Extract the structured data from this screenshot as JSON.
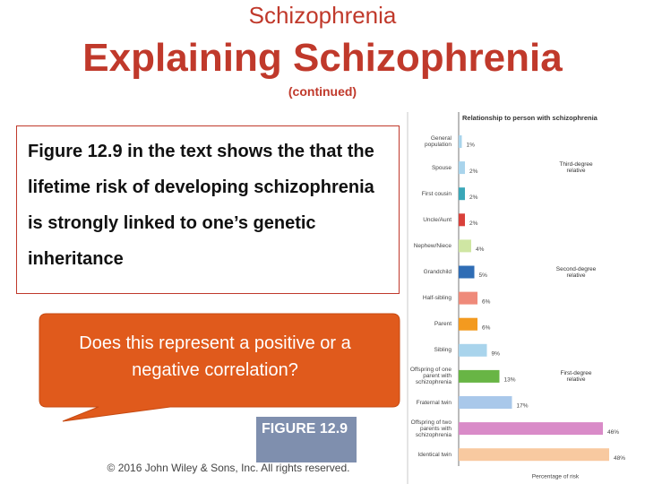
{
  "slide": {
    "header": "Schizophrenia",
    "title": "Explaining Schizophrenia",
    "subtitle": "(continued)",
    "body": "Figure 12.9 in the text shows the that the lifetime risk of developing schizophrenia is strongly linked to one’s genetic inheritance",
    "callout": "Does this represent a positive or a negative correlation?",
    "figure_label": "FIGURE 12.9",
    "copyright": "© 2016 John Wiley & Sons, Inc. All rights reserved."
  },
  "chart_data": {
    "type": "hbar",
    "title": "Relationship to person with schizophrenia",
    "x_label": "Percentage of risk",
    "categories": [
      "General population",
      "Spouse",
      "First cousin",
      "Uncle/Aunt",
      "Nephew/Niece",
      "Grandchild",
      "Half-sibling",
      "Parent",
      "Sibling",
      "Offspring of one parent with schizophrenia",
      "Fraternal twin",
      "Offspring of two parents with schizophrenia",
      "Identical twin"
    ],
    "values": [
      1,
      2,
      2,
      2,
      4,
      5,
      6,
      6,
      9,
      13,
      17,
      46,
      48
    ],
    "value_labels": [
      "1%",
      "2%",
      "2%",
      "2%",
      "4%",
      "5%",
      "6%",
      "6%",
      "9%",
      "13%",
      "17%",
      "46%",
      "48%"
    ],
    "colors": [
      "#a9d4ec",
      "#a9d4ec",
      "#3aa7b8",
      "#d9403a",
      "#cfe6a3",
      "#2f6db5",
      "#ef8a7a",
      "#f39a1f",
      "#a9d4ec",
      "#68b545",
      "#a9c8ea",
      "#d98bc8",
      "#f8c9a0"
    ],
    "annotations": [
      {
        "text": "Third-degree relative",
        "category": 1
      },
      {
        "text": "Second-degree relative",
        "category": 5
      },
      {
        "text": "First-degree relative",
        "category": 9
      }
    ],
    "xlim": [
      0,
      50
    ]
  }
}
